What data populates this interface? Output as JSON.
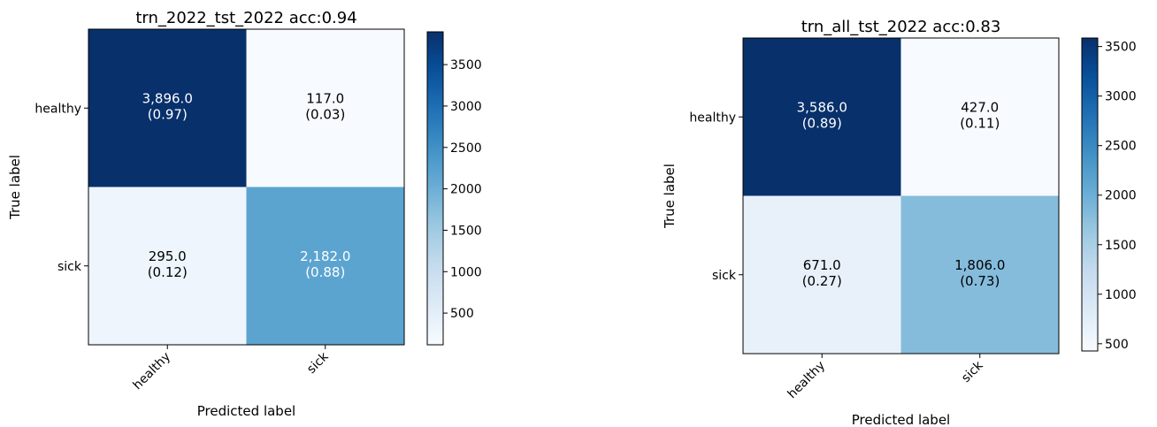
{
  "chart_data": [
    {
      "type": "heatmap",
      "title": "trn_2022_tst_2022 acc:0.94",
      "xlabel": "Predicted label",
      "ylabel": "True label",
      "x_categories": [
        "healthy",
        "sick"
      ],
      "y_categories": [
        "healthy",
        "sick"
      ],
      "values": [
        [
          3896.0,
          117.0
        ],
        [
          295.0,
          2182.0
        ]
      ],
      "cell_labels": [
        [
          "3,896.0",
          "117.0"
        ],
        [
          "295.0",
          "2,182.0"
        ]
      ],
      "cell_fractions": [
        [
          "(0.97)",
          "(0.03)"
        ],
        [
          "(0.12)",
          "(0.88)"
        ]
      ],
      "colormap": "Blues",
      "colorbar": {
        "min": 117,
        "max": 3896,
        "ticks": [
          500,
          1000,
          1500,
          2000,
          2500,
          3000,
          3500
        ]
      }
    },
    {
      "type": "heatmap",
      "title": "trn_all_tst_2022 acc:0.83",
      "xlabel": "Predicted label",
      "ylabel": "True label",
      "x_categories": [
        "healthy",
        "sick"
      ],
      "y_categories": [
        "healthy",
        "sick"
      ],
      "values": [
        [
          3586.0,
          427.0
        ],
        [
          671.0,
          1806.0
        ]
      ],
      "cell_labels": [
        [
          "3,586.0",
          "427.0"
        ],
        [
          "671.0",
          "1,806.0"
        ]
      ],
      "cell_fractions": [
        [
          "(0.89)",
          "(0.11)"
        ],
        [
          "(0.27)",
          "(0.73)"
        ]
      ],
      "colormap": "Blues",
      "colorbar": {
        "min": 427,
        "max": 3586,
        "ticks": [
          500,
          1000,
          1500,
          2000,
          2500,
          3000,
          3500
        ]
      }
    }
  ]
}
